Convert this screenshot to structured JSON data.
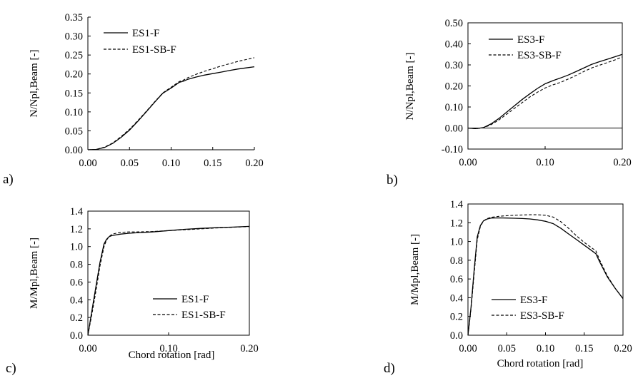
{
  "chart_data": [
    {
      "id": "a",
      "type": "line",
      "panel_label": "a)",
      "xlabel": "",
      "ylabel": "N/Npl,Beam [-]",
      "xlim": [
        0,
        0.2
      ],
      "ylim": [
        0,
        0.35
      ],
      "xticks": [
        "0.00",
        "0.05",
        "0.10",
        "0.15",
        "0.20"
      ],
      "yticks": [
        "0.00",
        "0.05",
        "0.10",
        "0.15",
        "0.20",
        "0.25",
        "0.30",
        "0.35"
      ],
      "legend_position": "top-left",
      "series": [
        {
          "name": "ES1-F",
          "style": "solid",
          "x": [
            0,
            0.01,
            0.02,
            0.03,
            0.04,
            0.05,
            0.06,
            0.07,
            0.08,
            0.09,
            0.1,
            0.11,
            0.115,
            0.12,
            0.13,
            0.14,
            0.15,
            0.16,
            0.17,
            0.18,
            0.19,
            0.2
          ],
          "y": [
            0,
            0.001,
            0.006,
            0.017,
            0.033,
            0.052,
            0.075,
            0.1,
            0.125,
            0.149,
            0.163,
            0.178,
            0.181,
            0.186,
            0.192,
            0.197,
            0.201,
            0.205,
            0.209,
            0.213,
            0.216,
            0.219
          ]
        },
        {
          "name": "ES1-SB-F",
          "style": "dashed",
          "x": [
            0,
            0.01,
            0.02,
            0.03,
            0.04,
            0.05,
            0.06,
            0.07,
            0.08,
            0.09,
            0.1,
            0.11,
            0.115,
            0.12,
            0.13,
            0.14,
            0.15,
            0.16,
            0.17,
            0.18,
            0.19,
            0.2
          ],
          "y": [
            0,
            0.001,
            0.007,
            0.018,
            0.035,
            0.054,
            0.077,
            0.101,
            0.126,
            0.15,
            0.165,
            0.18,
            0.184,
            0.19,
            0.199,
            0.207,
            0.214,
            0.221,
            0.227,
            0.233,
            0.238,
            0.243
          ]
        }
      ]
    },
    {
      "id": "b",
      "type": "line",
      "panel_label": "b)",
      "xlabel": "",
      "ylabel": "N/Npl,Beam [-]",
      "xlim": [
        0,
        0.2
      ],
      "ylim": [
        -0.1,
        0.5
      ],
      "xticks": [
        "0.00",
        "0.10",
        "0.20"
      ],
      "yticks": [
        "-0.10",
        "0.00",
        "0.10",
        "0.20",
        "0.30",
        "0.40",
        "0.50"
      ],
      "legend_position": "top-left",
      "series": [
        {
          "name": "ES3-F",
          "style": "solid",
          "x": [
            0,
            0.01,
            0.02,
            0.03,
            0.04,
            0.05,
            0.06,
            0.07,
            0.08,
            0.09,
            0.1,
            0.11,
            0.12,
            0.13,
            0.14,
            0.15,
            0.16,
            0.17,
            0.18,
            0.19,
            0.2
          ],
          "y": [
            0,
            -0.003,
            0.002,
            0.02,
            0.045,
            0.075,
            0.105,
            0.135,
            0.162,
            0.188,
            0.21,
            0.225,
            0.238,
            0.252,
            0.268,
            0.285,
            0.302,
            0.315,
            0.326,
            0.338,
            0.35
          ]
        },
        {
          "name": "ES3-SB-F",
          "style": "dashed",
          "x": [
            0,
            0.01,
            0.02,
            0.03,
            0.04,
            0.05,
            0.06,
            0.07,
            0.08,
            0.09,
            0.1,
            0.11,
            0.12,
            0.13,
            0.14,
            0.15,
            0.16,
            0.17,
            0.18,
            0.19,
            0.2
          ],
          "y": [
            0,
            -0.003,
            0.001,
            0.016,
            0.038,
            0.065,
            0.093,
            0.12,
            0.147,
            0.17,
            0.19,
            0.205,
            0.217,
            0.233,
            0.25,
            0.268,
            0.285,
            0.298,
            0.31,
            0.323,
            0.338
          ]
        }
      ]
    },
    {
      "id": "c",
      "type": "line",
      "panel_label": "c)",
      "xlabel": "Chord rotation [rad]",
      "ylabel": "M/Mpl,Beam [-]",
      "xlim": [
        0,
        0.2
      ],
      "ylim": [
        0,
        1.4
      ],
      "xticks": [
        "0.00",
        "0.10",
        "0.20"
      ],
      "yticks": [
        "0.0",
        "0.2",
        "0.4",
        "0.6",
        "0.8",
        "1.0",
        "1.2",
        "1.4"
      ],
      "legend_position": "bottom-right",
      "series": [
        {
          "name": "ES1-F",
          "style": "solid",
          "x": [
            0,
            0.005,
            0.01,
            0.015,
            0.02,
            0.023,
            0.026,
            0.03,
            0.04,
            0.05,
            0.06,
            0.08,
            0.1,
            0.12,
            0.14,
            0.16,
            0.18,
            0.2
          ],
          "y": [
            0,
            0.28,
            0.55,
            0.82,
            1.03,
            1.08,
            1.11,
            1.125,
            1.14,
            1.15,
            1.155,
            1.165,
            1.18,
            1.195,
            1.205,
            1.213,
            1.22,
            1.228
          ]
        },
        {
          "name": "ES1-SB-F",
          "style": "dashed",
          "x": [
            0,
            0.005,
            0.01,
            0.015,
            0.02,
            0.023,
            0.026,
            0.03,
            0.04,
            0.05,
            0.06,
            0.08,
            0.1,
            0.12,
            0.14,
            0.16,
            0.18,
            0.2
          ],
          "y": [
            0,
            0.24,
            0.5,
            0.78,
            1.0,
            1.07,
            1.11,
            1.14,
            1.16,
            1.165,
            1.165,
            1.17,
            1.18,
            1.19,
            1.2,
            1.21,
            1.218,
            1.226
          ]
        }
      ]
    },
    {
      "id": "d",
      "type": "line",
      "panel_label": "d)",
      "xlabel": "Chord rotation [rad]",
      "ylabel": "M/Mpl,Beam [-]",
      "xlim": [
        0,
        0.2
      ],
      "ylim": [
        0,
        1.4
      ],
      "xticks": [
        "0.00",
        "0.05",
        "0.10",
        "0.15",
        "0.20"
      ],
      "yticks": [
        "0.0",
        "0.2",
        "0.4",
        "0.6",
        "0.8",
        "1.0",
        "1.2",
        "1.4"
      ],
      "legend_position": "bottom-left",
      "series": [
        {
          "name": "ES3-F",
          "style": "solid",
          "x": [
            0,
            0.004,
            0.008,
            0.012,
            0.016,
            0.02,
            0.025,
            0.03,
            0.04,
            0.05,
            0.06,
            0.07,
            0.08,
            0.09,
            0.1,
            0.11,
            0.12,
            0.13,
            0.14,
            0.15,
            0.16,
            0.165,
            0.17,
            0.18,
            0.19,
            0.2
          ],
          "y": [
            0,
            0.3,
            0.7,
            1.05,
            1.17,
            1.22,
            1.24,
            1.25,
            1.252,
            1.25,
            1.248,
            1.245,
            1.24,
            1.23,
            1.215,
            1.19,
            1.14,
            1.08,
            1.02,
            0.96,
            0.9,
            0.87,
            0.78,
            0.62,
            0.5,
            0.39
          ]
        },
        {
          "name": "ES3-SB-F",
          "style": "dashed",
          "x": [
            0,
            0.004,
            0.008,
            0.012,
            0.016,
            0.02,
            0.025,
            0.03,
            0.04,
            0.05,
            0.06,
            0.07,
            0.08,
            0.09,
            0.1,
            0.11,
            0.12,
            0.13,
            0.14,
            0.15,
            0.16,
            0.165,
            0.17,
            0.18,
            0.19,
            0.2
          ],
          "y": [
            0,
            0.28,
            0.66,
            1.02,
            1.16,
            1.22,
            1.245,
            1.258,
            1.268,
            1.275,
            1.28,
            1.283,
            1.285,
            1.285,
            1.28,
            1.26,
            1.21,
            1.14,
            1.06,
            0.99,
            0.93,
            0.9,
            0.8,
            0.63,
            0.5,
            0.39
          ]
        }
      ]
    }
  ]
}
